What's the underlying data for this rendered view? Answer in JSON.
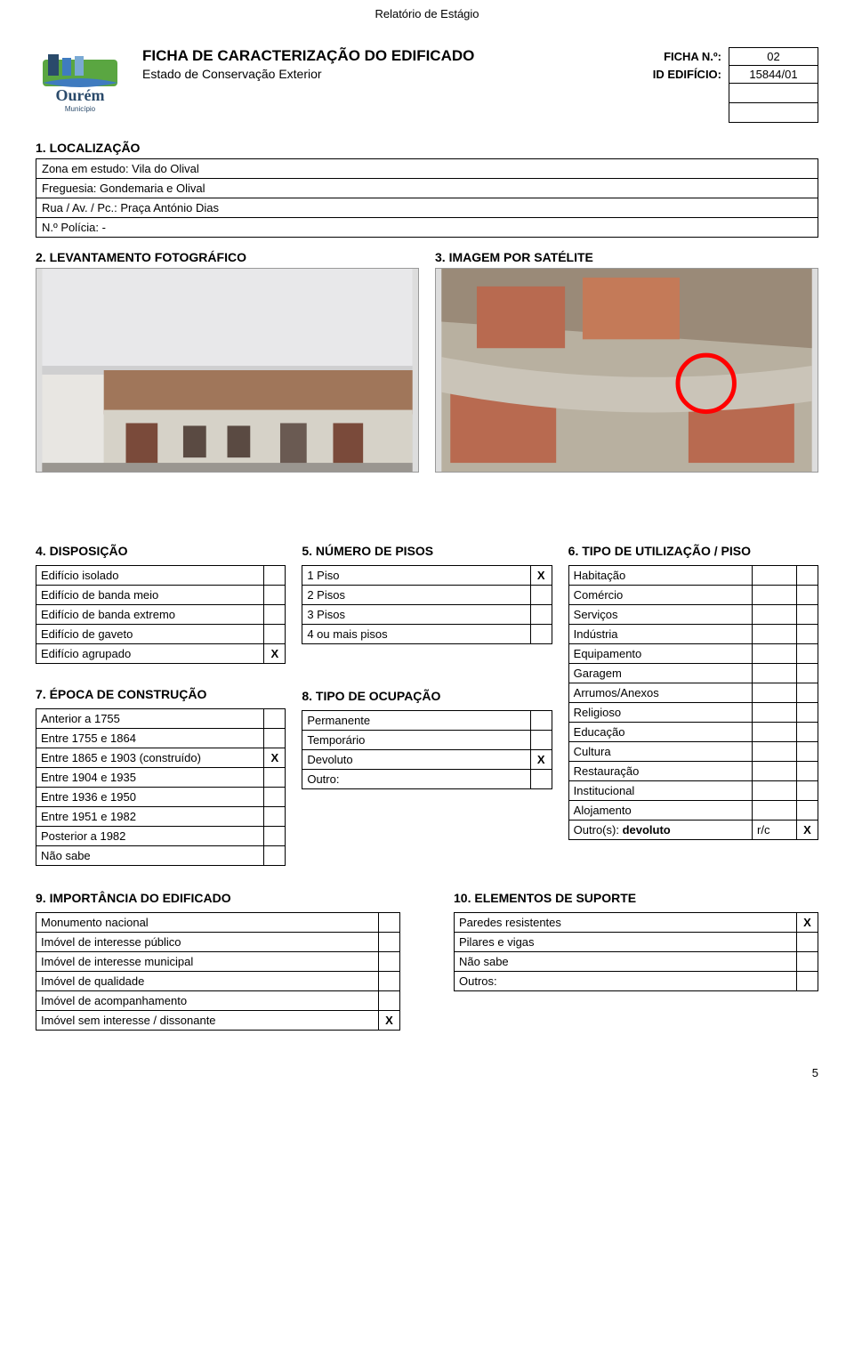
{
  "pageHeader": "Relatório de Estágio",
  "mainTitle": "FICHA DE CARACTERIZAÇÃO DO EDIFICADO",
  "subtitle": "Estado de Conservação Exterior",
  "logoText": "Ourém",
  "logoSub": "Município",
  "fichaLabel": "FICHA N.º:",
  "fichaVal": "02",
  "idEdificioLabel": "ID EDIFÍCIO:",
  "idEdificioVal": "15844/01",
  "sec1": {
    "title": "1. LOCALIZAÇÃO",
    "zona": "Zona em estudo: Vila do Olival",
    "freguesia": "Freguesia: Gondemaria e Olival",
    "rua": "Rua / Av. / Pc.: Praça António Dias",
    "policia": "N.º Polícia: -"
  },
  "sec2Title": "2. LEVANTAMENTO FOTOGRÁFICO",
  "sec3Title": "3. IMAGEM POR SATÉLITE",
  "photo1Alt": "[fotografia do edifício]",
  "photo2Alt": "[imagem satélite]",
  "sec4": {
    "title": "4. DISPOSIÇÃO",
    "rows": [
      {
        "label": "Edifício isolado",
        "mark": ""
      },
      {
        "label": "Edifício de banda meio",
        "mark": ""
      },
      {
        "label": "Edifício de banda extremo",
        "mark": ""
      },
      {
        "label": "Edifício de gaveto",
        "mark": ""
      },
      {
        "label": "Edifício agrupado",
        "mark": "X"
      }
    ]
  },
  "sec5": {
    "title": "5. NÚMERO DE PISOS",
    "rows": [
      {
        "label": "1 Piso",
        "mark": "X"
      },
      {
        "label": "2 Pisos",
        "mark": ""
      },
      {
        "label": "3 Pisos",
        "mark": ""
      },
      {
        "label": "4 ou mais pisos",
        "mark": ""
      }
    ]
  },
  "sec6": {
    "title": "6. TIPO DE UTILIZAÇÃO / PISO",
    "rows": [
      {
        "label": "Habitação",
        "c2": "",
        "c3": ""
      },
      {
        "label": "Comércio",
        "c2": "",
        "c3": ""
      },
      {
        "label": "Serviços",
        "c2": "",
        "c3": ""
      },
      {
        "label": "Indústria",
        "c2": "",
        "c3": ""
      },
      {
        "label": "Equipamento",
        "c2": "",
        "c3": ""
      },
      {
        "label": "Garagem",
        "c2": "",
        "c3": ""
      },
      {
        "label": "Arrumos/Anexos",
        "c2": "",
        "c3": ""
      },
      {
        "label": "Religioso",
        "c2": "",
        "c3": ""
      },
      {
        "label": "Educação",
        "c2": "",
        "c3": ""
      },
      {
        "label": "Cultura",
        "c2": "",
        "c3": ""
      },
      {
        "label": "Restauração",
        "c2": "",
        "c3": ""
      },
      {
        "label": "Institucional",
        "c2": "",
        "c3": ""
      },
      {
        "label": "Alojamento",
        "c2": "",
        "c3": ""
      },
      {
        "label": "Outro(s): devoluto",
        "c2": "r/c",
        "c3": "X"
      }
    ]
  },
  "sec7": {
    "title": "7. ÉPOCA DE CONSTRUÇÃO",
    "rows": [
      {
        "label": "Anterior a 1755",
        "mark": ""
      },
      {
        "label": "Entre 1755 e 1864",
        "mark": ""
      },
      {
        "label": "Entre 1865 e 1903 (construído)",
        "mark": "X"
      },
      {
        "label": "Entre 1904 e 1935",
        "mark": ""
      },
      {
        "label": "Entre 1936 e 1950",
        "mark": ""
      },
      {
        "label": "Entre 1951 e 1982",
        "mark": ""
      },
      {
        "label": "Posterior a 1982",
        "mark": ""
      },
      {
        "label": "Não sabe",
        "mark": ""
      }
    ]
  },
  "sec8": {
    "title": "8. TIPO DE OCUPAÇÃO",
    "rows": [
      {
        "label": "Permanente",
        "mark": ""
      },
      {
        "label": "Temporário",
        "mark": ""
      },
      {
        "label": "Devoluto",
        "mark": "X"
      },
      {
        "label": "Outro:",
        "mark": ""
      }
    ]
  },
  "sec9": {
    "title": "9. IMPORTÂNCIA DO EDIFICADO",
    "rows": [
      {
        "label": "Monumento nacional",
        "mark": ""
      },
      {
        "label": "Imóvel de interesse público",
        "mark": ""
      },
      {
        "label": "Imóvel de interesse municipal",
        "mark": ""
      },
      {
        "label": "Imóvel de qualidade",
        "mark": ""
      },
      {
        "label": "Imóvel de acompanhamento",
        "mark": ""
      },
      {
        "label": "Imóvel sem interesse / dissonante",
        "mark": "X"
      }
    ]
  },
  "sec10": {
    "title": "10. ELEMENTOS DE SUPORTE",
    "rows": [
      {
        "label": "Paredes resistentes",
        "mark": "X"
      },
      {
        "label": "Pilares e vigas",
        "mark": ""
      },
      {
        "label": "Não sabe",
        "mark": ""
      },
      {
        "label": "Outros:",
        "mark": ""
      }
    ]
  },
  "outroBold": "devoluto",
  "outroPrefix": "Outro(s): ",
  "pageNum": "5",
  "colors": {
    "logoGreen": "#5aa641",
    "logoBlue": "#3f7bbf",
    "logoDark": "#2a4a6b",
    "circle": "#ff0000"
  }
}
